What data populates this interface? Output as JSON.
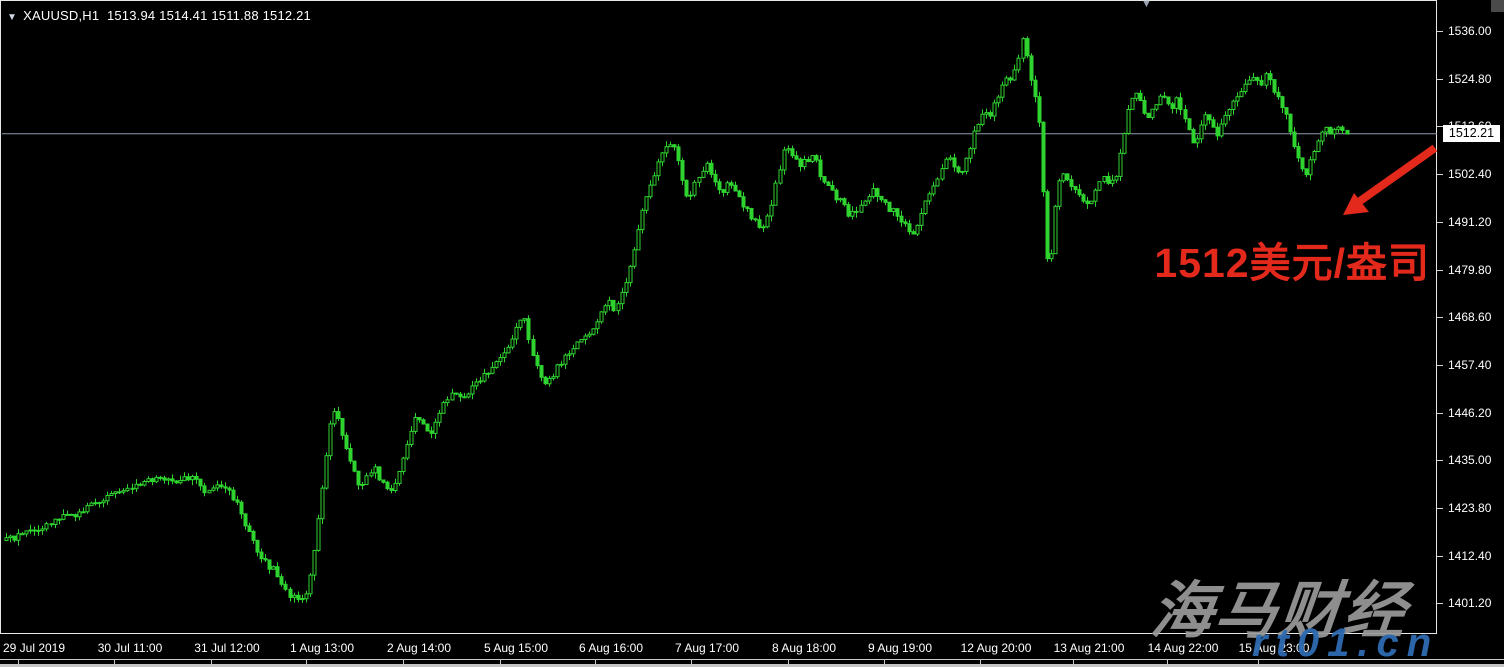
{
  "header": {
    "dropdown_icon": "▼",
    "info_text": "XAUUSD,H1  1513.94 1514.41 1511.88 1512.21"
  },
  "price_axis": {
    "current_price": "1512.21"
  },
  "annotation": {
    "text": "1512美元/盎司",
    "color": "#e3291c"
  },
  "watermark": {
    "brand": "海马财经",
    "url": "rt01.cn"
  },
  "colors": {
    "background": "#000000",
    "candle_green": "#2fd32f",
    "price_line": "#8f9bb0",
    "annotation_red": "#e3291c",
    "watermark_gray": "#9b9b9b",
    "watermark_blue": "#2f6cb3",
    "axis_text": "#ffffff"
  },
  "chart_data": {
    "type": "candlestick",
    "symbol": "XAUUSD",
    "timeframe": "H1",
    "title": "XAUUSD,H1",
    "last_ohlc": {
      "open": 1513.94,
      "high": 1514.41,
      "low": 1511.88,
      "close": 1512.21
    },
    "current_price": 1512.21,
    "y_axis": {
      "min": 1401.2,
      "max": 1536.0,
      "tick_labels": [
        "1536.00",
        "1524.80",
        "1513.60",
        "1502.40",
        "1491.20",
        "1479.80",
        "1468.60",
        "1457.40",
        "1446.20",
        "1435.00",
        "1423.80",
        "1412.40",
        "1401.20"
      ]
    },
    "x_axis": {
      "tick_labels": [
        "29 Jul 2019",
        "30 Jul 11:00",
        "31 Jul 12:00",
        "1 Aug 13:00",
        "2 Aug 14:00",
        "5 Aug 15:00",
        "6 Aug 16:00",
        "7 Aug 17:00",
        "8 Aug 18:00",
        "9 Aug 19:00",
        "12 Aug 20:00",
        "13 Aug 21:00",
        "14 Aug 22:00",
        "15 Aug 23:00"
      ]
    },
    "grid": false,
    "legend": false,
    "price_path_anchors": [
      [
        5,
        1417
      ],
      [
        25,
        1419
      ],
      [
        50,
        1421
      ],
      [
        62,
        1424
      ],
      [
        75,
        1423
      ],
      [
        95,
        1426
      ],
      [
        115,
        1428
      ],
      [
        140,
        1431
      ],
      [
        160,
        1432
      ],
      [
        175,
        1431
      ],
      [
        190,
        1432
      ],
      [
        205,
        1428
      ],
      [
        218,
        1430
      ],
      [
        232,
        1427
      ],
      [
        245,
        1420
      ],
      [
        258,
        1413
      ],
      [
        272,
        1410
      ],
      [
        285,
        1405
      ],
      [
        298,
        1402
      ],
      [
        305,
        1406
      ],
      [
        312,
        1415
      ],
      [
        320,
        1430
      ],
      [
        328,
        1444
      ],
      [
        333,
        1447
      ],
      [
        342,
        1441
      ],
      [
        352,
        1433
      ],
      [
        358,
        1429
      ],
      [
        365,
        1432
      ],
      [
        372,
        1434
      ],
      [
        380,
        1430
      ],
      [
        390,
        1429
      ],
      [
        398,
        1434
      ],
      [
        406,
        1440
      ],
      [
        414,
        1446
      ],
      [
        420,
        1444
      ],
      [
        428,
        1442
      ],
      [
        436,
        1447
      ],
      [
        445,
        1450
      ],
      [
        455,
        1452
      ],
      [
        462,
        1450
      ],
      [
        470,
        1453
      ],
      [
        480,
        1455
      ],
      [
        490,
        1458
      ],
      [
        500,
        1461
      ],
      [
        508,
        1463
      ],
      [
        516,
        1468
      ],
      [
        521,
        1470
      ],
      [
        527,
        1464
      ],
      [
        534,
        1458
      ],
      [
        541,
        1453
      ],
      [
        548,
        1455
      ],
      [
        556,
        1458
      ],
      [
        564,
        1460
      ],
      [
        572,
        1462
      ],
      [
        580,
        1464
      ],
      [
        590,
        1466
      ],
      [
        600,
        1471
      ],
      [
        607,
        1474
      ],
      [
        612,
        1470
      ],
      [
        617,
        1473
      ],
      [
        624,
        1478
      ],
      [
        632,
        1486
      ],
      [
        640,
        1494
      ],
      [
        648,
        1500
      ],
      [
        656,
        1505
      ],
      [
        663,
        1509
      ],
      [
        668,
        1510
      ],
      [
        674,
        1509
      ],
      [
        680,
        1502
      ],
      [
        686,
        1497
      ],
      [
        692,
        1500
      ],
      [
        698,
        1503
      ],
      [
        705,
        1505
      ],
      [
        712,
        1501
      ],
      [
        718,
        1498
      ],
      [
        725,
        1500
      ],
      [
        732,
        1499
      ],
      [
        740,
        1496
      ],
      [
        748,
        1493
      ],
      [
        755,
        1491
      ],
      [
        762,
        1490
      ],
      [
        770,
        1496
      ],
      [
        777,
        1504
      ],
      [
        783,
        1509
      ],
      [
        790,
        1507
      ],
      [
        797,
        1505
      ],
      [
        804,
        1506
      ],
      [
        812,
        1507
      ],
      [
        818,
        1502
      ],
      [
        825,
        1500
      ],
      [
        832,
        1498
      ],
      [
        840,
        1496
      ],
      [
        848,
        1493
      ],
      [
        855,
        1494
      ],
      [
        862,
        1497
      ],
      [
        870,
        1499
      ],
      [
        878,
        1497
      ],
      [
        885,
        1495
      ],
      [
        892,
        1494
      ],
      [
        900,
        1492
      ],
      [
        907,
        1490
      ],
      [
        913,
        1489
      ],
      [
        920,
        1494
      ],
      [
        928,
        1499
      ],
      [
        935,
        1502
      ],
      [
        942,
        1505
      ],
      [
        948,
        1507
      ],
      [
        953,
        1504
      ],
      [
        958,
        1502
      ],
      [
        964,
        1506
      ],
      [
        970,
        1511
      ],
      [
        976,
        1515
      ],
      [
        982,
        1518
      ],
      [
        988,
        1516
      ],
      [
        994,
        1520
      ],
      [
        1000,
        1524
      ],
      [
        1006,
        1526
      ],
      [
        1010,
        1524
      ],
      [
        1015,
        1529
      ],
      [
        1020,
        1534
      ],
      [
        1024,
        1532
      ],
      [
        1028,
        1526
      ],
      [
        1033,
        1521
      ],
      [
        1037,
        1514
      ],
      [
        1041,
        1498
      ],
      [
        1045,
        1483
      ],
      [
        1048,
        1481
      ],
      [
        1051,
        1491
      ],
      [
        1055,
        1499
      ],
      [
        1060,
        1503
      ],
      [
        1066,
        1501
      ],
      [
        1072,
        1499
      ],
      [
        1078,
        1497
      ],
      [
        1084,
        1495
      ],
      [
        1090,
        1497
      ],
      [
        1096,
        1500
      ],
      [
        1102,
        1502
      ],
      [
        1108,
        1500
      ],
      [
        1113,
        1502
      ],
      [
        1118,
        1508
      ],
      [
        1123,
        1514
      ],
      [
        1128,
        1520
      ],
      [
        1133,
        1523
      ],
      [
        1139,
        1519
      ],
      [
        1145,
        1516
      ],
      [
        1151,
        1518
      ],
      [
        1157,
        1521
      ],
      [
        1163,
        1520
      ],
      [
        1169,
        1518
      ],
      [
        1174,
        1521
      ],
      [
        1180,
        1517
      ],
      [
        1186,
        1514
      ],
      [
        1192,
        1509
      ],
      [
        1198,
        1513
      ],
      [
        1204,
        1517
      ],
      [
        1210,
        1514
      ],
      [
        1216,
        1512
      ],
      [
        1222,
        1516
      ],
      [
        1228,
        1519
      ],
      [
        1234,
        1521
      ],
      [
        1240,
        1523
      ],
      [
        1247,
        1525
      ],
      [
        1253,
        1526
      ],
      [
        1258,
        1523
      ],
      [
        1263,
        1527
      ],
      [
        1268,
        1524
      ],
      [
        1274,
        1521
      ],
      [
        1280,
        1518
      ],
      [
        1286,
        1515
      ],
      [
        1292,
        1509
      ],
      [
        1298,
        1505
      ],
      [
        1304,
        1503
      ],
      [
        1310,
        1507
      ],
      [
        1316,
        1511
      ],
      [
        1322,
        1514
      ],
      [
        1328,
        1512
      ],
      [
        1334,
        1514
      ],
      [
        1340,
        1513
      ],
      [
        1346,
        1512.2
      ]
    ],
    "annotation": {
      "text": "1512美元/盎司",
      "arrow_from_price": 1512.21,
      "arrow_points_to": "current price level"
    }
  }
}
